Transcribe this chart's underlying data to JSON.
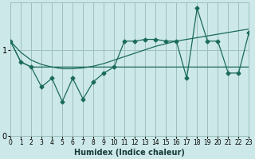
{
  "xlabel": "Humidex (Indice chaleur)",
  "bg_color": "#cde8e8",
  "grid_color": "#9dbfbf",
  "line_color": "#1a6b5a",
  "xlim": [
    0,
    23
  ],
  "ylim": [
    0,
    1.55
  ],
  "yticks": [
    0,
    1
  ],
  "xticks": [
    0,
    1,
    2,
    3,
    4,
    5,
    6,
    7,
    8,
    9,
    10,
    11,
    12,
    13,
    14,
    15,
    16,
    17,
    18,
    19,
    20,
    21,
    22,
    23
  ],
  "smooth_x": [
    0,
    1,
    2,
    3,
    4,
    5,
    6,
    7,
    8,
    9,
    10,
    11,
    12,
    13,
    14,
    15,
    16,
    17,
    18,
    19,
    20,
    21,
    22,
    23
  ],
  "smooth_y": [
    1.1,
    0.97,
    0.88,
    0.83,
    0.8,
    0.78,
    0.78,
    0.79,
    0.81,
    0.84,
    0.88,
    0.92,
    0.96,
    1.0,
    1.04,
    1.07,
    1.1,
    1.12,
    1.14,
    1.16,
    1.18,
    1.2,
    1.22,
    1.24
  ],
  "mid_x": [
    0,
    1,
    2,
    3,
    4,
    5,
    6,
    7,
    8,
    9,
    10,
    11,
    12,
    13,
    14,
    15,
    16,
    17,
    18,
    19,
    20,
    21,
    22,
    23
  ],
  "mid_y": [
    1.1,
    0.86,
    0.8,
    0.8,
    0.8,
    0.8,
    0.8,
    0.8,
    0.8,
    0.8,
    0.8,
    0.8,
    0.8,
    0.8,
    0.8,
    0.8,
    0.8,
    0.8,
    0.8,
    0.8,
    0.8,
    0.8,
    0.8,
    0.8
  ],
  "vol_x": [
    0,
    1,
    2,
    3,
    4,
    5,
    6,
    7,
    8,
    9,
    10,
    11,
    12,
    13,
    14,
    15,
    16,
    17,
    18,
    19,
    20,
    21,
    22,
    23
  ],
  "vol_y": [
    1.1,
    0.86,
    0.8,
    0.57,
    0.67,
    0.4,
    0.67,
    0.43,
    0.63,
    0.73,
    0.8,
    1.1,
    1.1,
    1.12,
    1.12,
    1.1,
    1.1,
    0.67,
    1.48,
    1.1,
    1.1,
    0.73,
    0.73,
    1.2
  ]
}
